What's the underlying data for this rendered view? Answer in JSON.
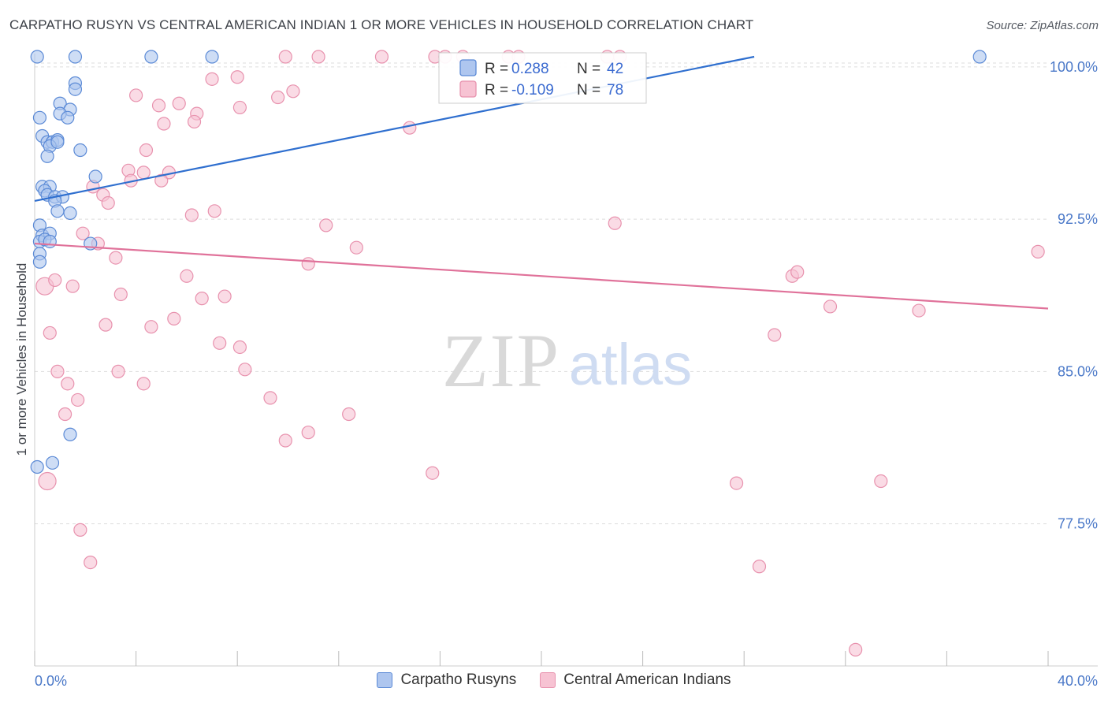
{
  "title": "CARPATHO RUSYN VS CENTRAL AMERICAN INDIAN 1 OR MORE VEHICLES IN HOUSEHOLD CORRELATION CHART",
  "source": "Source: ZipAtlas.com",
  "watermark": {
    "zip": "ZIP",
    "atlas": "atlas"
  },
  "colors": {
    "blue_fill": "#aec6ef",
    "blue_stroke": "#5b8ad6",
    "blue_line": "#2f6fcf",
    "pink_fill": "#f7c3d3",
    "pink_stroke": "#e892ae",
    "pink_line": "#e0729a",
    "tick_text": "#4a78c8",
    "grid": "#dddddd"
  },
  "legend": {
    "rows": [
      {
        "r_label": "R =",
        "r_value": " 0.288",
        "n_label": "N =",
        "n_value": "42"
      },
      {
        "r_label": "R =",
        "r_value": "-0.109",
        "n_label": "N =",
        "n_value": "78"
      }
    ]
  },
  "chart_data": {
    "type": "scatter",
    "title": "CARPATHO RUSYN VS CENTRAL AMERICAN INDIAN 1 OR MORE VEHICLES IN HOUSEHOLD CORRELATION CHART",
    "xlabel": "",
    "ylabel": "1 or more Vehicles in Household",
    "xlim": [
      0,
      40
    ],
    "ylim": [
      70.5,
      100.5
    ],
    "x_tick_labels": [
      "0.0%",
      "40.0%"
    ],
    "y_ticks": [
      {
        "value": 100.0,
        "label": "100.0%"
      },
      {
        "value": 92.5,
        "label": "92.5%"
      },
      {
        "value": 85.0,
        "label": "85.0%"
      },
      {
        "value": 77.5,
        "label": "77.5%"
      }
    ],
    "series": [
      {
        "name": "Carpatho Rusyns",
        "color": "blue",
        "r": 0.288,
        "n": 42,
        "trend": {
          "x": [
            0.0,
            28.4
          ],
          "y": [
            93.4,
            100.5
          ]
        },
        "points": [
          [
            1.6,
            100.5
          ],
          [
            4.6,
            100.5
          ],
          [
            7.0,
            100.5
          ],
          [
            37.3,
            100.5
          ],
          [
            1.6,
            99.2
          ],
          [
            1.6,
            98.9
          ],
          [
            1.0,
            98.2
          ],
          [
            1.4,
            97.9
          ],
          [
            1.0,
            97.7
          ],
          [
            1.3,
            97.5
          ],
          [
            0.3,
            96.6
          ],
          [
            0.5,
            96.3
          ],
          [
            0.7,
            96.3
          ],
          [
            0.9,
            96.4
          ],
          [
            0.6,
            96.1
          ],
          [
            0.9,
            96.3
          ],
          [
            1.8,
            95.9
          ],
          [
            0.5,
            95.6
          ],
          [
            2.4,
            94.6
          ],
          [
            0.3,
            94.1
          ],
          [
            0.6,
            94.1
          ],
          [
            0.4,
            93.9
          ],
          [
            0.5,
            93.7
          ],
          [
            0.8,
            93.6
          ],
          [
            1.1,
            93.6
          ],
          [
            0.8,
            93.4
          ],
          [
            1.4,
            92.8
          ],
          [
            0.9,
            92.9
          ],
          [
            0.2,
            92.2
          ],
          [
            0.3,
            91.7
          ],
          [
            0.6,
            91.8
          ],
          [
            0.2,
            91.4
          ],
          [
            0.4,
            91.5
          ],
          [
            0.6,
            91.4
          ],
          [
            2.2,
            91.3
          ],
          [
            0.2,
            90.8
          ],
          [
            0.2,
            90.4
          ],
          [
            1.4,
            81.9
          ],
          [
            0.7,
            80.5
          ],
          [
            0.1,
            80.3
          ],
          [
            0.1,
            100.5
          ],
          [
            0.2,
            97.5
          ]
        ]
      },
      {
        "name": "Central American Indians",
        "color": "pink",
        "r": -0.109,
        "n": 78,
        "trend": {
          "x": [
            0.0,
            40.0
          ],
          "y": [
            91.3,
            88.1
          ]
        },
        "points": [
          [
            9.9,
            100.5
          ],
          [
            11.2,
            100.5
          ],
          [
            13.7,
            100.5
          ],
          [
            15.8,
            100.5
          ],
          [
            16.2,
            100.5
          ],
          [
            16.9,
            100.5
          ],
          [
            18.7,
            100.5
          ],
          [
            19.1,
            100.5
          ],
          [
            22.6,
            100.5
          ],
          [
            23.1,
            100.5
          ],
          [
            10.2,
            98.8
          ],
          [
            7.0,
            99.4
          ],
          [
            8.0,
            99.5
          ],
          [
            9.6,
            98.5
          ],
          [
            4.0,
            98.6
          ],
          [
            4.9,
            98.1
          ],
          [
            5.7,
            98.2
          ],
          [
            8.1,
            98.0
          ],
          [
            6.4,
            97.7
          ],
          [
            6.3,
            97.3
          ],
          [
            5.1,
            97.2
          ],
          [
            14.8,
            97.0
          ],
          [
            4.4,
            95.9
          ],
          [
            3.7,
            94.9
          ],
          [
            4.3,
            94.8
          ],
          [
            5.3,
            94.8
          ],
          [
            3.8,
            94.4
          ],
          [
            5.0,
            94.4
          ],
          [
            2.3,
            94.1
          ],
          [
            2.7,
            93.7
          ],
          [
            2.9,
            93.3
          ],
          [
            6.2,
            92.7
          ],
          [
            7.1,
            92.9
          ],
          [
            11.5,
            92.2
          ],
          [
            22.9,
            92.3
          ],
          [
            1.9,
            91.8
          ],
          [
            2.5,
            91.3
          ],
          [
            12.7,
            91.1
          ],
          [
            3.2,
            90.6
          ],
          [
            10.8,
            90.3
          ],
          [
            6.0,
            89.7
          ],
          [
            29.9,
            89.7
          ],
          [
            30.1,
            89.9
          ],
          [
            39.6,
            90.9
          ],
          [
            0.4,
            89.2
          ],
          [
            0.8,
            89.5
          ],
          [
            1.5,
            89.2
          ],
          [
            3.4,
            88.8
          ],
          [
            6.6,
            88.6
          ],
          [
            7.5,
            88.7
          ],
          [
            31.4,
            88.2
          ],
          [
            34.9,
            88.0
          ],
          [
            5.5,
            87.6
          ],
          [
            2.8,
            87.3
          ],
          [
            4.6,
            87.2
          ],
          [
            0.6,
            86.9
          ],
          [
            29.2,
            86.8
          ],
          [
            7.3,
            86.4
          ],
          [
            8.1,
            86.2
          ],
          [
            0.9,
            85.0
          ],
          [
            8.3,
            85.1
          ],
          [
            3.3,
            85.0
          ],
          [
            1.3,
            84.4
          ],
          [
            4.3,
            84.4
          ],
          [
            1.7,
            83.6
          ],
          [
            9.3,
            83.7
          ],
          [
            1.2,
            82.9
          ],
          [
            12.4,
            82.9
          ],
          [
            10.8,
            82.0
          ],
          [
            9.9,
            81.6
          ],
          [
            15.7,
            80.0
          ],
          [
            0.5,
            79.6
          ],
          [
            27.7,
            79.5
          ],
          [
            33.4,
            79.6
          ],
          [
            1.8,
            77.2
          ],
          [
            2.2,
            75.6
          ],
          [
            28.6,
            75.4
          ],
          [
            32.4,
            71.3
          ]
        ]
      }
    ]
  }
}
